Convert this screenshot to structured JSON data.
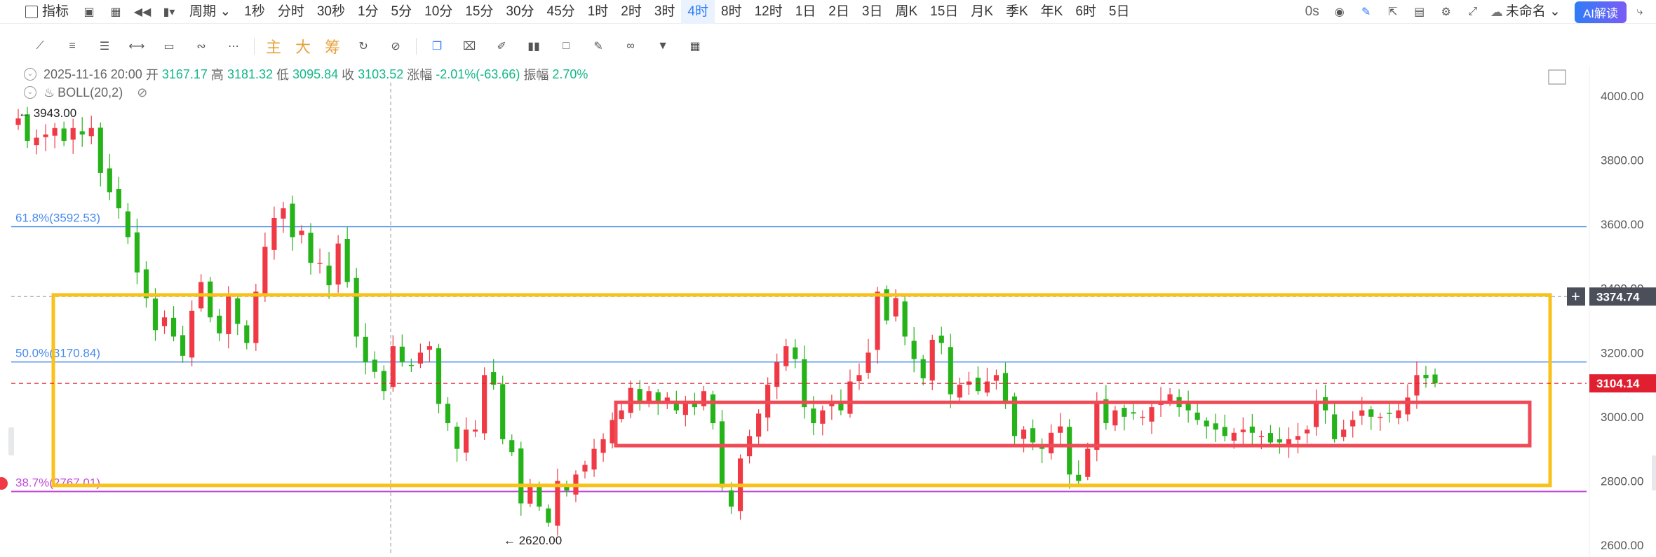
{
  "toolbar": {
    "indicator_label": "指标",
    "period_label": "周期",
    "periods": [
      "1秒",
      "分时",
      "30秒",
      "1分",
      "5分",
      "10分",
      "15分",
      "30分",
      "45分",
      "1时",
      "2时",
      "3时",
      "4时",
      "8时",
      "12时",
      "1日",
      "2日",
      "3日",
      "周K",
      "15日",
      "月K",
      "季K",
      "年K",
      "6时",
      "5日"
    ],
    "active_period": "4时",
    "countdown": "0s",
    "layout_name": "未命名",
    "ai_label": "AI解读"
  },
  "drawtools": {
    "main_label": "主",
    "big_label": "大",
    "chip_label": "筹"
  },
  "info": {
    "datetime": "2025-11-16 20:00",
    "open_label": "开",
    "open": "3167.17",
    "high_label": "高",
    "high": "3181.32",
    "low_label": "低",
    "low": "3095.84",
    "close_label": "收",
    "close": "3103.52",
    "change_label": "涨幅",
    "change": "-2.01%(-63.66)",
    "amp_label": "振幅",
    "amp": "2.70%",
    "indicator": "BOLL(20,2)"
  },
  "colors": {
    "up": "#ef3a45",
    "down": "#25b319",
    "fib": "#4a8cf0",
    "fib_low": "#c04ad8",
    "yellow_box": "#f8c21b",
    "red_box": "#ef4a55",
    "crosshair_tag": "#4a4f5a",
    "price_tag": "#e02030"
  },
  "chart_data": {
    "type": "candlestick",
    "symbol_interval": "4h",
    "ylim": [
      2600,
      4080
    ],
    "y_ticks": [
      "4000.00",
      "3800.00",
      "3600.00",
      "3400.00",
      "3200.00",
      "3000.00",
      "2800.00",
      "2600.00"
    ],
    "highest_marker": "3943.00",
    "lowest_marker": "2620.00",
    "crosshair_price": "3374.74",
    "last_price": "3104.14",
    "fib_levels": [
      {
        "label": "61.8%(3592.53)",
        "price": 3592.53
      },
      {
        "label": "50.0%(3170.84)",
        "price": 3170.84
      },
      {
        "label": "38.7%(2767.01)",
        "price": 2767.01
      }
    ],
    "range_box_price": [
      2786,
      3380
    ],
    "consolidation_box_price": [
      2910,
      3045
    ],
    "close_series": [
      3930,
      3860,
      3870,
      3880,
      3900,
      3860,
      3900,
      3880,
      3900,
      3760,
      3700,
      3650,
      3560,
      3450,
      3370,
      3270,
      3310,
      3250,
      3190,
      3330,
      3420,
      3310,
      3260,
      3380,
      3290,
      3230,
      3390,
      3530,
      3620,
      3650,
      3560,
      3580,
      3480,
      3480,
      3410,
      3540,
      3420,
      3250,
      3170,
      3140,
      3080,
      3220,
      3170,
      3160,
      3200,
      3220,
      3040,
      2980,
      2900,
      2960,
      2960,
      3130,
      3100,
      2930,
      2890,
      2730,
      2790,
      2720,
      2670,
      2800,
      2770,
      2820,
      2850,
      2900,
      2930,
      2990,
      3020,
      3090,
      3050,
      3080,
      3040,
      3060,
      3020,
      3050,
      3030,
      3080,
      2980,
      2780,
      2720,
      2870,
      2940,
      3010,
      3100,
      3170,
      3220,
      3180,
      3030,
      2980,
      3020,
      3040,
      3020,
      3110,
      3130,
      3200,
      3390,
      3300,
      3370,
      3250,
      3180,
      3120,
      3240,
      3230,
      3070,
      3100,
      3110,
      3080,
      3110,
      3130,
      3050,
      2940,
      2960,
      2920,
      2900,
      2950,
      2970,
      2820,
      2800,
      2900,
      3040,
      2980,
      3020,
      3000,
      3010,
      3000,
      3030,
      3050,
      3070,
      3030,
      3020,
      2990,
      2970,
      2960,
      2940,
      2950,
      2960,
      2950,
      2940,
      2920,
      2920,
      2930,
      2940,
      2960,
      3050,
      3020,
      2930,
      2960,
      2990,
      3020,
      3000,
      3000,
      3010,
      3020,
      3060,
      3130,
      3120,
      3104
    ]
  }
}
